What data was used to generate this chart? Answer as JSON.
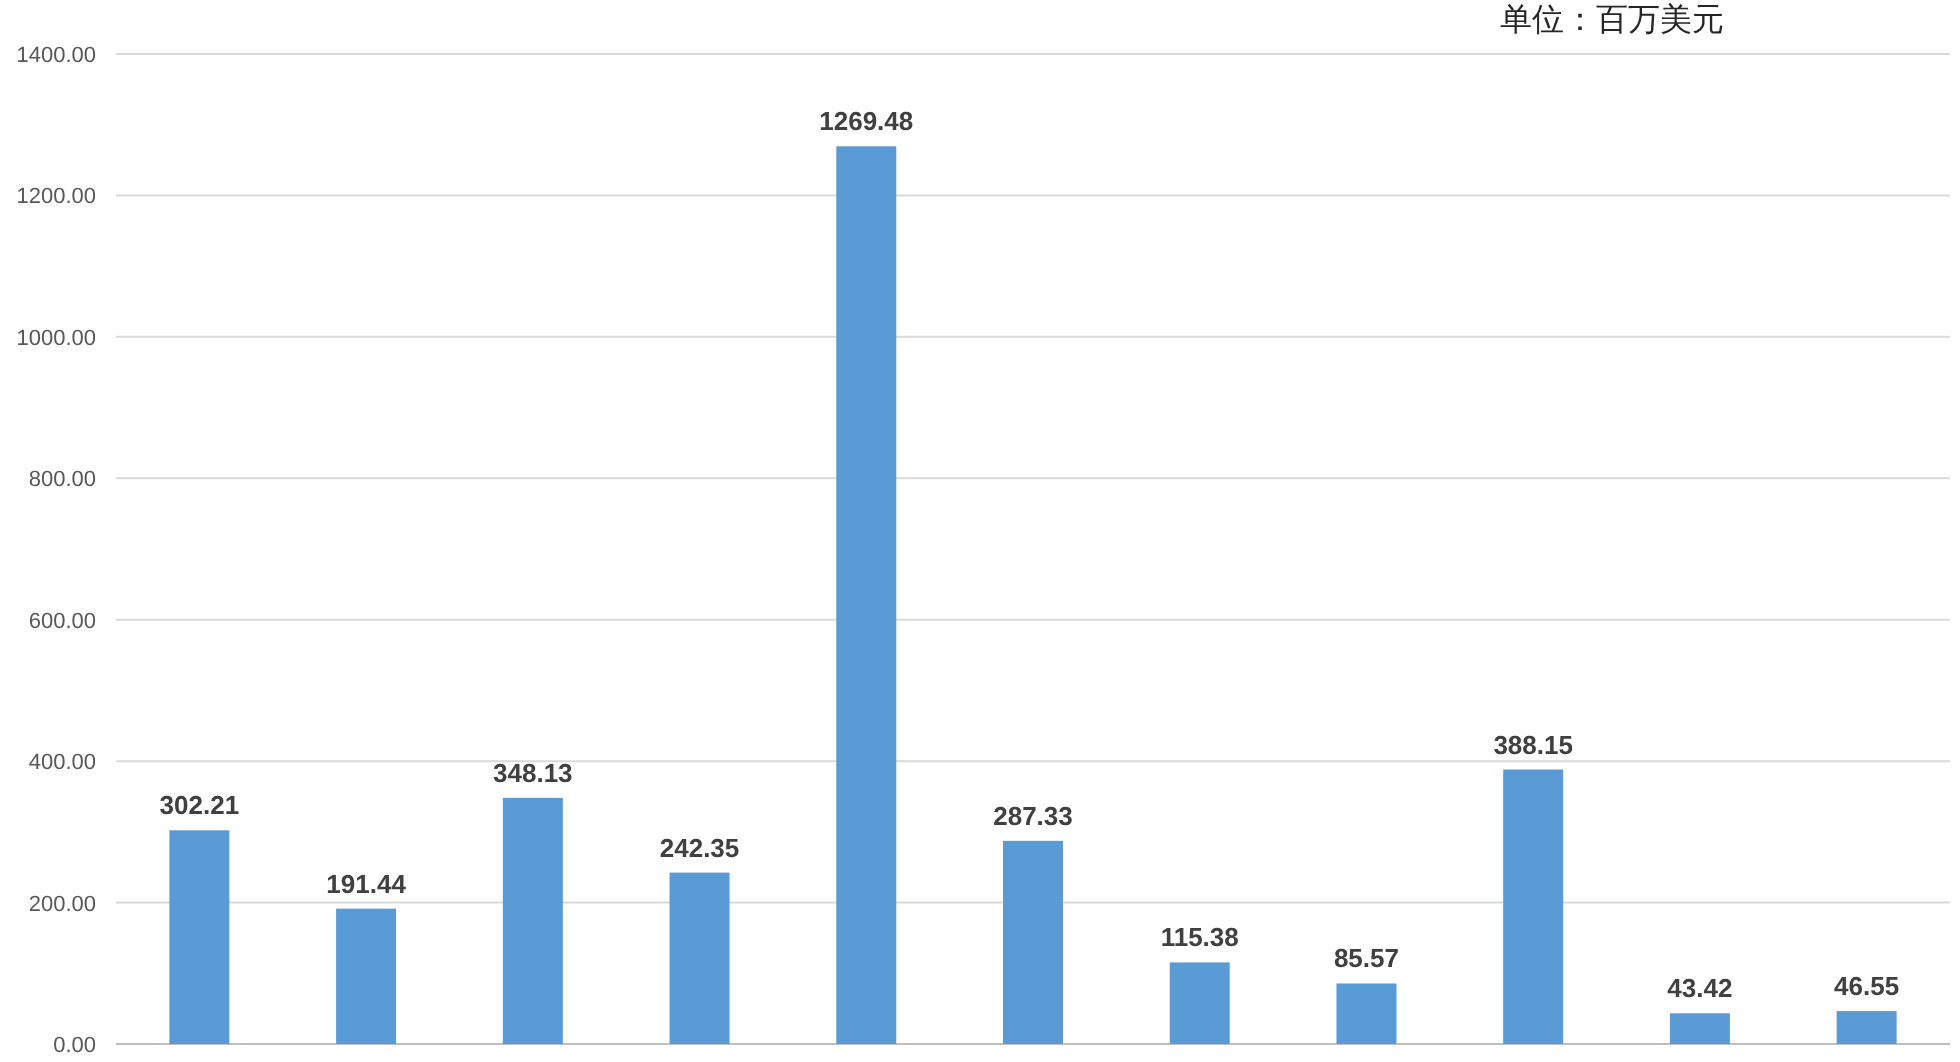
{
  "chart_data": {
    "type": "bar",
    "categories": [
      null,
      null,
      null,
      null,
      null,
      null,
      null,
      null,
      null,
      null,
      null
    ],
    "values": [
      302.21,
      191.44,
      348.13,
      242.35,
      1269.48,
      287.33,
      115.38,
      85.57,
      388.15,
      43.42,
      46.55
    ],
    "color": "#5b9bd5",
    "ylim": [
      0,
      1400
    ],
    "yticks": [
      {
        "value": 0,
        "label": "0.00"
      },
      {
        "value": 200,
        "label": "200.00"
      },
      {
        "value": 400,
        "label": "400.00"
      },
      {
        "value": 600,
        "label": "600.00"
      },
      {
        "value": 800,
        "label": "800.00"
      },
      {
        "value": 1000,
        "label": "1000.00"
      },
      {
        "value": 1200,
        "label": "1200.00"
      },
      {
        "value": 1400,
        "label": "1400.00"
      }
    ],
    "grid": "y",
    "data_labels": true,
    "annotations": [
      "单位：百万美元"
    ]
  }
}
